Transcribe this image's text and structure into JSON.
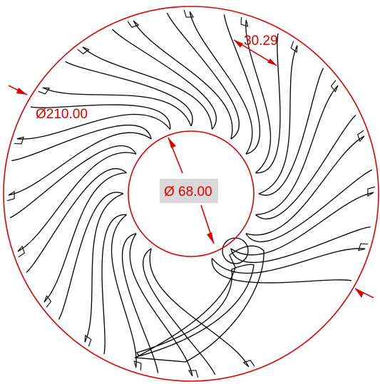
{
  "drawing": {
    "outer_diameter_label": "Ø210.00",
    "inner_diameter_label": "Ø 68.00",
    "blade_spacing_label": "30.29",
    "blade_count": 20,
    "colors": {
      "dimension": "#e00000",
      "geometry": "#000000",
      "label_highlight": "#d9d9d9",
      "background": "#ffffff"
    }
  }
}
